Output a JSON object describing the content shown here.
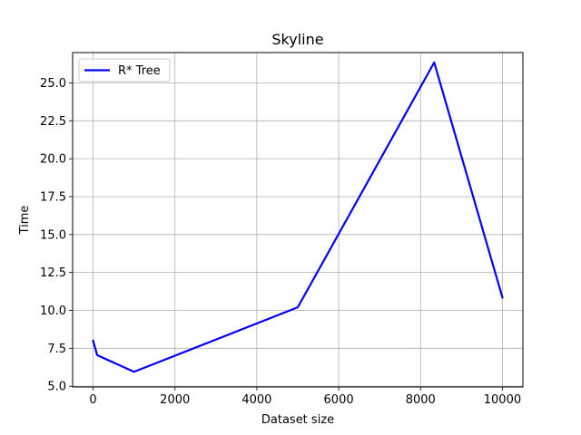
{
  "chart_data": {
    "type": "line",
    "title": "Skyline",
    "xlabel": "Dataset size",
    "ylabel": "Time",
    "xlim": [
      -500,
      10500
    ],
    "ylim": [
      4.95,
      27.0
    ],
    "xticks": [
      0,
      2000,
      4000,
      6000,
      8000,
      10000
    ],
    "yticks": [
      5.0,
      7.5,
      10.0,
      12.5,
      15.0,
      17.5,
      20.0,
      22.5,
      25.0
    ],
    "xtick_labels": [
      "0",
      "2000",
      "4000",
      "6000",
      "8000",
      "10000"
    ],
    "ytick_labels": [
      "5.0",
      "7.5",
      "10.0",
      "12.5",
      "15.0",
      "17.5",
      "20.0",
      "22.5",
      "25.0"
    ],
    "grid": true,
    "legend_position": "upper-left",
    "series": [
      {
        "name": "R* Tree",
        "color": "#0000ff",
        "x": [
          0,
          100,
          1000,
          5000,
          8333,
          10000
        ],
        "y": [
          8.0,
          7.05,
          5.95,
          10.2,
          26.35,
          10.85
        ]
      }
    ]
  }
}
